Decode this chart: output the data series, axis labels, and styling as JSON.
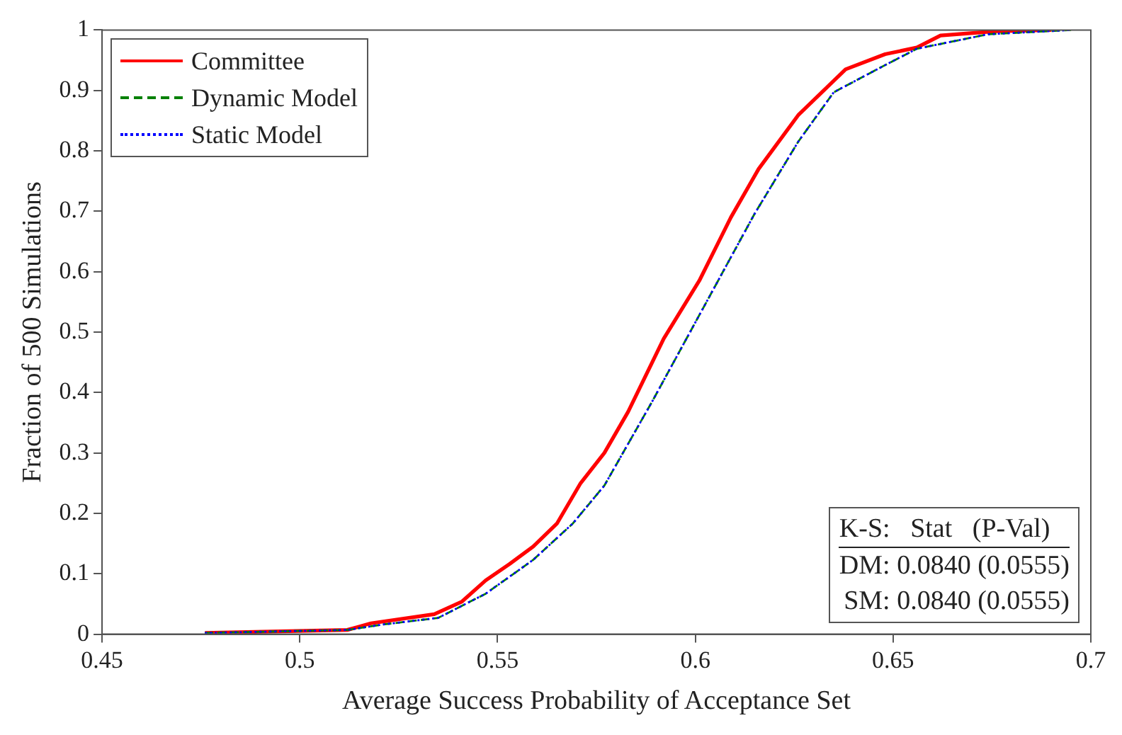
{
  "chart_data": {
    "type": "line",
    "xlabel": "Average Success Probability of Acceptance Set",
    "ylabel": "Fraction of 500 Simulations",
    "xlim": [
      0.45,
      0.7
    ],
    "xticks": [
      0.45,
      0.5,
      0.55,
      0.6,
      0.65,
      0.7
    ],
    "ylim": [
      0,
      1
    ],
    "yticks": [
      0,
      0.1,
      0.2,
      0.3,
      0.4,
      0.5,
      0.6,
      0.7,
      0.8,
      0.9,
      1
    ],
    "grid": false,
    "legend": "top left",
    "marker": "none",
    "series": [
      {
        "name": "Committee",
        "color": "#ff0000",
        "line_style": "solid",
        "x": [
          0.476,
          0.512,
          0.518,
          0.534,
          0.541,
          0.547,
          0.553,
          0.559,
          0.565,
          0.571,
          0.577,
          0.583,
          0.592,
          0.601,
          0.609,
          0.616,
          0.626,
          0.638,
          0.648,
          0.656,
          0.662,
          0.676,
          0.69
        ],
        "values": [
          0.002,
          0.007,
          0.018,
          0.033,
          0.054,
          0.089,
          0.116,
          0.145,
          0.183,
          0.25,
          0.3,
          0.368,
          0.489,
          0.585,
          0.69,
          0.77,
          0.859,
          0.935,
          0.96,
          0.971,
          0.991,
          0.998,
          1
        ]
      },
      {
        "name": "Dynamic Model",
        "color": "#008000",
        "line_style": "dashed",
        "x": [
          0.476,
          0.512,
          0.521,
          0.535,
          0.547,
          0.559,
          0.569,
          0.577,
          0.589,
          0.597,
          0.607,
          0.615,
          0.626,
          0.635,
          0.648,
          0.656,
          0.674,
          0.695
        ],
        "values": [
          0.002,
          0.007,
          0.016,
          0.027,
          0.067,
          0.123,
          0.183,
          0.246,
          0.384,
          0.48,
          0.6,
          0.696,
          0.815,
          0.897,
          0.942,
          0.969,
          0.993,
          1
        ]
      },
      {
        "name": "Static Model",
        "color": "#0000ff",
        "line_style": "dotted",
        "x": [
          0.476,
          0.512,
          0.521,
          0.535,
          0.547,
          0.559,
          0.569,
          0.577,
          0.589,
          0.597,
          0.607,
          0.615,
          0.626,
          0.635,
          0.648,
          0.656,
          0.674,
          0.695
        ],
        "values": [
          0.002,
          0.007,
          0.016,
          0.027,
          0.067,
          0.123,
          0.183,
          0.246,
          0.384,
          0.48,
          0.6,
          0.696,
          0.815,
          0.897,
          0.942,
          0.969,
          0.993,
          1
        ]
      }
    ],
    "annotations": [
      "K-S:   Stat   (P-Val)",
      "DM: 0.0840 (0.0555)",
      "SM: 0.0840 (0.0555)"
    ]
  }
}
